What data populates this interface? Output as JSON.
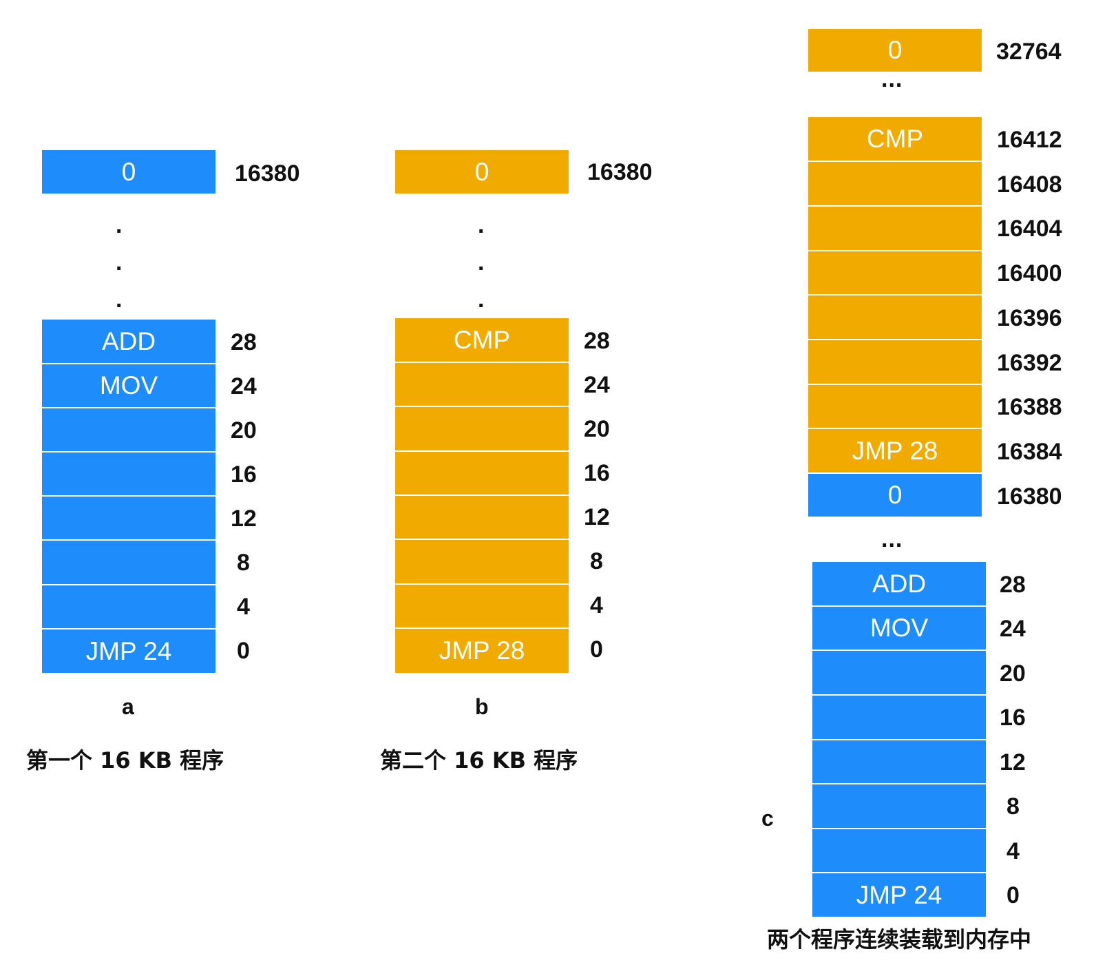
{
  "panel_a": {
    "top": {
      "label": "0",
      "address": "16380"
    },
    "cells": [
      {
        "label": "ADD",
        "address": "28"
      },
      {
        "label": "MOV",
        "address": "24"
      },
      {
        "label": "",
        "address": "20"
      },
      {
        "label": "",
        "address": "16"
      },
      {
        "label": "",
        "address": "12"
      },
      {
        "label": "",
        "address": "8"
      },
      {
        "label": "",
        "address": "4"
      },
      {
        "label": "JMP 24",
        "address": "0"
      }
    ],
    "gap_dots": [
      ".",
      ".",
      "."
    ],
    "sublabel": "a",
    "caption": "第一个 16 KB 程序",
    "color": "#1e8cfa"
  },
  "panel_b": {
    "top": {
      "label": "0",
      "address": "16380"
    },
    "cells": [
      {
        "label": "CMP",
        "address": "28"
      },
      {
        "label": "",
        "address": "24"
      },
      {
        "label": "",
        "address": "20"
      },
      {
        "label": "",
        "address": "16"
      },
      {
        "label": "",
        "address": "12"
      },
      {
        "label": "",
        "address": "8"
      },
      {
        "label": "",
        "address": "4"
      },
      {
        "label": "JMP 28",
        "address": "0"
      }
    ],
    "gap_dots": [
      ".",
      ".",
      "."
    ],
    "sublabel": "b",
    "caption": "第二个 16 KB 程序",
    "color": "#f0aa00"
  },
  "panel_c": {
    "top": {
      "label": "0",
      "address": "32764"
    },
    "top_ellipsis": "...",
    "upper_cells": [
      {
        "label": "CMP",
        "address": "16412"
      },
      {
        "label": "",
        "address": "16408"
      },
      {
        "label": "",
        "address": "16404"
      },
      {
        "label": "",
        "address": "16400"
      },
      {
        "label": "",
        "address": "16396"
      },
      {
        "label": "",
        "address": "16392"
      },
      {
        "label": "",
        "address": "16388"
      },
      {
        "label": "JMP 28",
        "address": "16384"
      }
    ],
    "boundary": {
      "label": "0",
      "address": "16380"
    },
    "mid_ellipsis": "...",
    "lower_cells": [
      {
        "label": "ADD",
        "address": "28"
      },
      {
        "label": "MOV",
        "address": "24"
      },
      {
        "label": "",
        "address": "20"
      },
      {
        "label": "",
        "address": "16"
      },
      {
        "label": "",
        "address": "12"
      },
      {
        "label": "",
        "address": "8"
      },
      {
        "label": "",
        "address": "4"
      },
      {
        "label": "JMP 24",
        "address": "0"
      }
    ],
    "sublabel": "c",
    "caption": "两个程序连续装载到内存中",
    "color_program_1": "#1e8cfa",
    "color_program_2": "#f0aa00"
  }
}
